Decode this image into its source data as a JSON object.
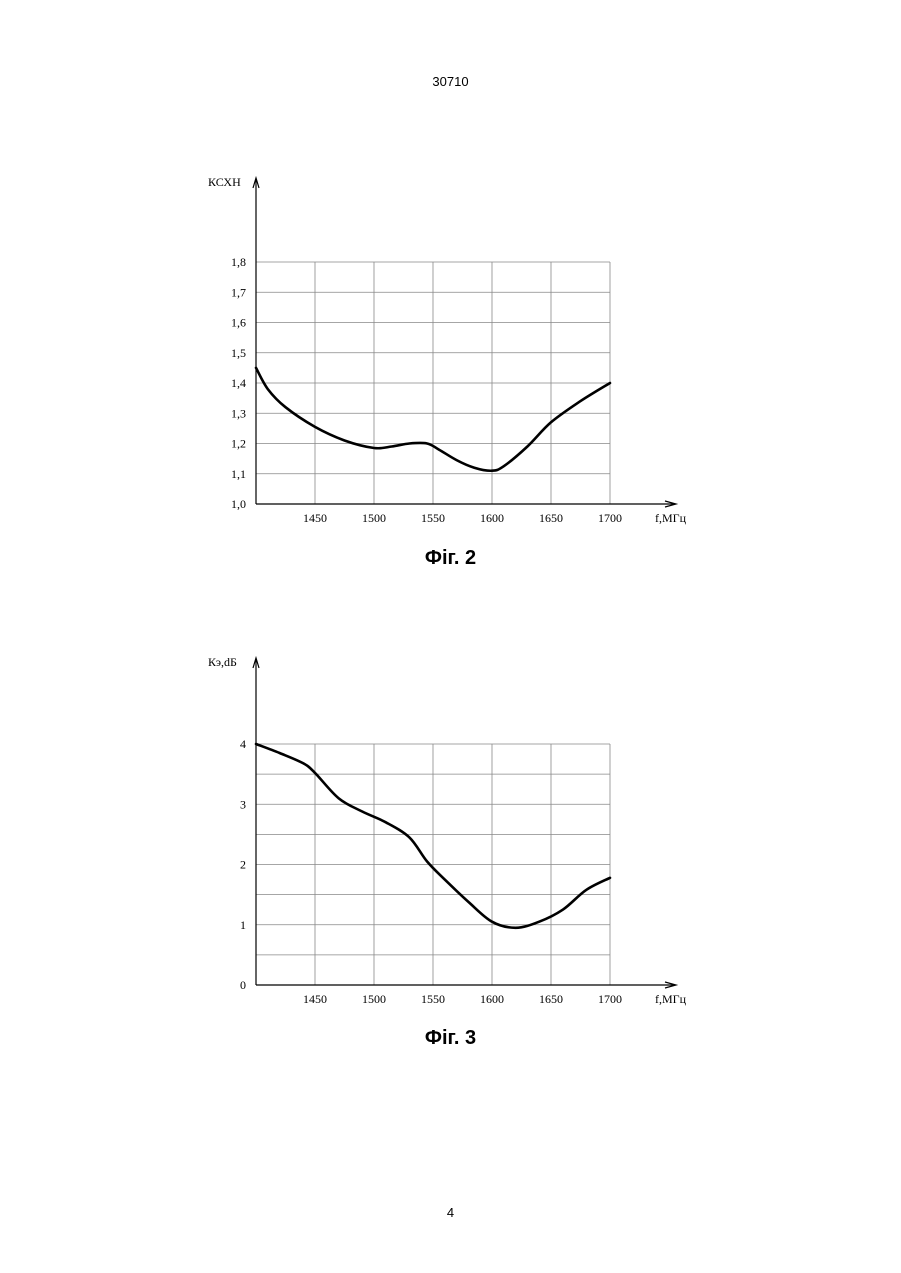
{
  "header": {
    "doc_number": "30710"
  },
  "footer": {
    "page_number": "4"
  },
  "figures": [
    {
      "caption": "Фіг. 2"
    },
    {
      "caption": "Фіг. 3"
    }
  ],
  "chart_data": [
    {
      "type": "line",
      "title": "",
      "ylabel": "КСХН",
      "xlabel": "f,МГц",
      "xlim": [
        1400,
        1700
      ],
      "ylim": [
        1.0,
        1.8
      ],
      "x_ticks": [
        1450,
        1500,
        1550,
        1600,
        1650,
        1700
      ],
      "x_tick_labels": [
        "1450",
        "1500",
        "1550",
        "1600",
        "1650",
        "1700"
      ],
      "y_ticks": [
        1.0,
        1.1,
        1.2,
        1.3,
        1.4,
        1.5,
        1.6,
        1.7,
        1.8
      ],
      "y_tick_labels": [
        "1,0",
        "1,1",
        "1,2",
        "1,3",
        "1,4",
        "1,5",
        "1,6",
        "1,7",
        "1,8"
      ],
      "grid": true,
      "series": [
        {
          "x": [
            1400,
            1410,
            1425,
            1450,
            1475,
            1500,
            1515,
            1530,
            1545,
            1555,
            1570,
            1585,
            1600,
            1610,
            1630,
            1650,
            1675,
            1700
          ],
          "y": [
            1.45,
            1.38,
            1.32,
            1.255,
            1.21,
            1.185,
            1.19,
            1.2,
            1.2,
            1.18,
            1.145,
            1.12,
            1.11,
            1.125,
            1.19,
            1.27,
            1.34,
            1.4
          ]
        }
      ]
    },
    {
      "type": "line",
      "title": "",
      "ylabel": "Кэ,dБ",
      "xlabel": "f,МГц",
      "xlim": [
        1400,
        1700
      ],
      "ylim": [
        0,
        4
      ],
      "x_ticks": [
        1450,
        1500,
        1550,
        1600,
        1650,
        1700
      ],
      "x_tick_labels": [
        "1450",
        "1500",
        "1550",
        "1600",
        "1650",
        "1700"
      ],
      "y_ticks": [
        0,
        1,
        2,
        3,
        4
      ],
      "y_tick_labels": [
        "0",
        "1",
        "2",
        "3",
        "4"
      ],
      "grid": true,
      "series": [
        {
          "x": [
            1400,
            1420,
            1440,
            1450,
            1470,
            1490,
            1510,
            1530,
            1545,
            1560,
            1580,
            1600,
            1620,
            1640,
            1660,
            1680,
            1700
          ],
          "y": [
            4.0,
            3.85,
            3.68,
            3.52,
            3.1,
            2.88,
            2.7,
            2.45,
            2.05,
            1.75,
            1.38,
            1.05,
            0.95,
            1.05,
            1.25,
            1.58,
            1.78
          ]
        }
      ]
    }
  ]
}
